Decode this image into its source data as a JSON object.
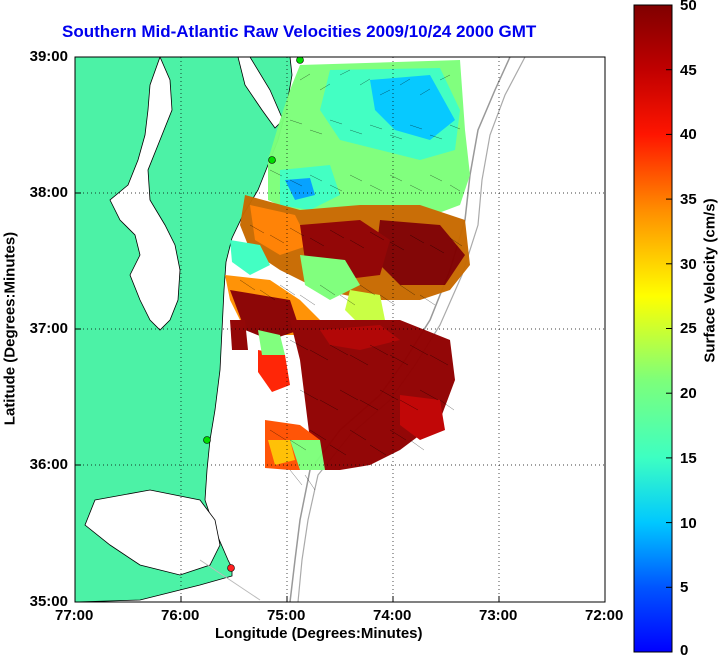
{
  "title": "Southern Mid-Atlantic Raw Velocities 2009/10/24 2000 GMT",
  "x_axis": {
    "label": "Longitude (Degrees:Minutes)",
    "ticks": [
      "77:00",
      "76:00",
      "75:00",
      "74:00",
      "73:00",
      "72:00"
    ]
  },
  "y_axis": {
    "label": "Latitude (Degrees:Minutes)",
    "ticks": [
      "39:00",
      "38:00",
      "37:00",
      "36:00",
      "35:00"
    ]
  },
  "colorbar": {
    "label": "Surface Velocity (cm/s)",
    "ticks": [
      "50",
      "45",
      "40",
      "35",
      "30",
      "25",
      "20",
      "15",
      "10",
      "5",
      "0"
    ],
    "min": 0,
    "max": 50
  },
  "colors": {
    "land": "#4cf2a6",
    "water": "#ffffff",
    "title": "#0000ee",
    "grid": "#000000"
  }
}
